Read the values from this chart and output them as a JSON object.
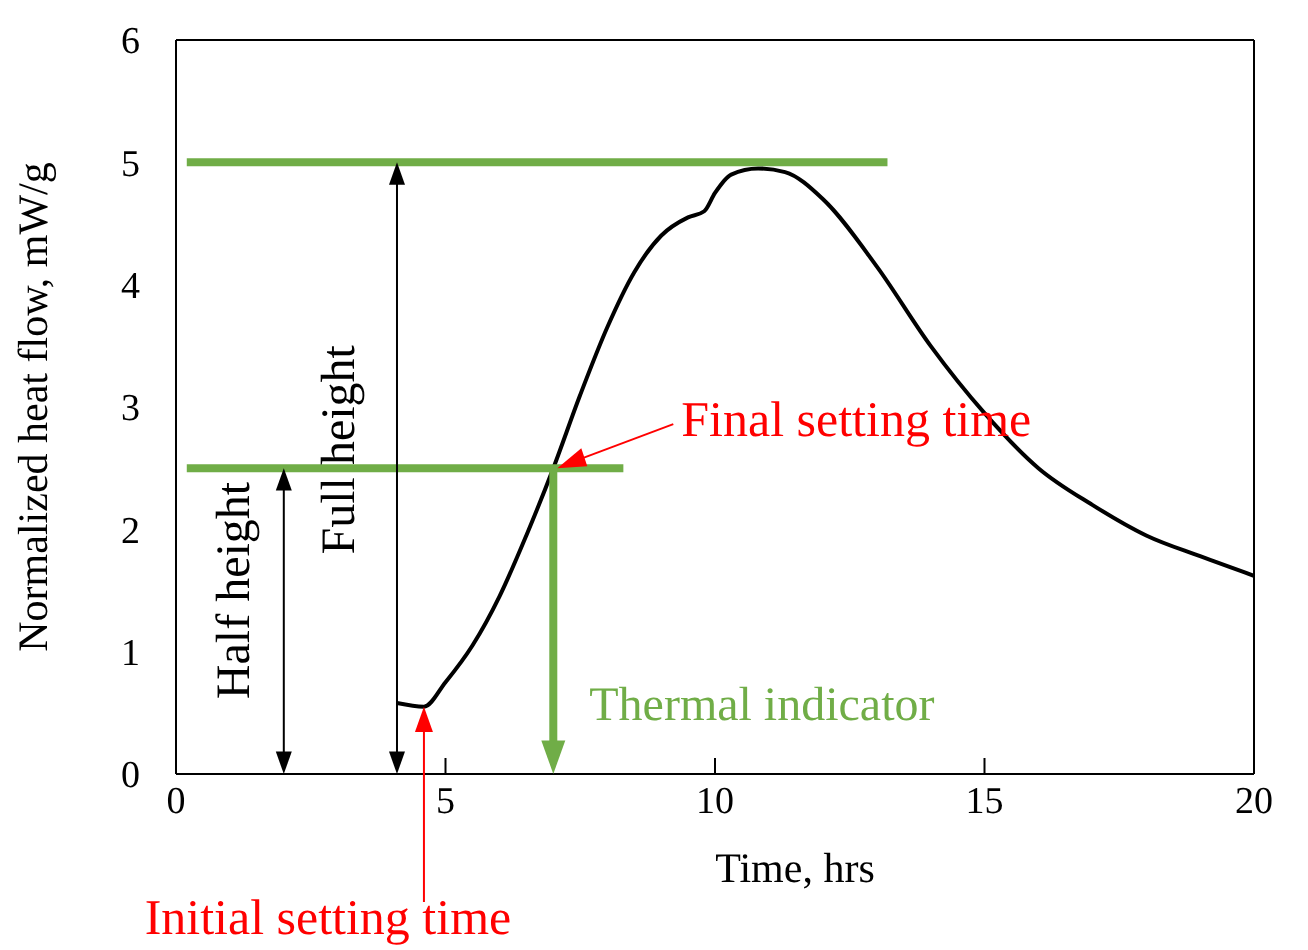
{
  "chart_data": {
    "type": "line",
    "xlabel": "Time, hrs",
    "ylabel": "Normalized heat flow, mW/g",
    "xlim": [
      0,
      20
    ],
    "ylim": [
      0,
      6
    ],
    "xticks": [
      0,
      5,
      10,
      15,
      20
    ],
    "yticks": [
      0,
      1,
      2,
      3,
      4,
      5,
      6
    ],
    "marker": "none",
    "line_style": "solid",
    "series": [
      {
        "color": "#000000",
        "x": [
          4.1,
          4.6,
          5,
          5.5,
          6,
          6.5,
          7,
          7.5,
          8,
          8.5,
          9,
          9.5,
          9.8,
          10,
          10.3,
          10.8,
          11.3,
          12,
          13,
          14,
          15,
          16,
          17,
          18,
          19,
          20
        ],
        "values": [
          0.58,
          0.55,
          0.75,
          1.05,
          1.45,
          1.95,
          2.5,
          3.1,
          3.65,
          4.1,
          4.4,
          4.55,
          4.6,
          4.75,
          4.9,
          4.95,
          4.92,
          4.7,
          4.15,
          3.5,
          2.95,
          2.5,
          2.2,
          1.95,
          1.78,
          1.62
        ]
      },
      {
        "color": "#70ad47",
        "x": [
          0.2,
          13.2
        ],
        "values": [
          5,
          5
        ]
      },
      {
        "color": "#70ad47",
        "x": [
          0.2,
          8.3
        ],
        "values": [
          2.5,
          2.5
        ]
      }
    ],
    "annotations": [
      "Full height",
      "Half height",
      {
        "text": "Final setting time",
        "x": 7,
        "y": 2.5
      },
      "Initial setting time",
      {
        "text": "Thermal indicator",
        "x": 7,
        "y": 2.5
      }
    ]
  }
}
